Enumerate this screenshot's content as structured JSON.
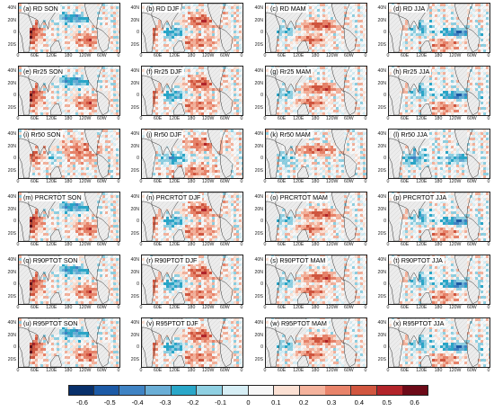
{
  "panels": [
    {
      "label": "(a) RD SON",
      "pattern": 0
    },
    {
      "label": "(b) RD DJF",
      "pattern": 1
    },
    {
      "label": "(c) RD MAM",
      "pattern": 2
    },
    {
      "label": "(d) RD JJA",
      "pattern": 3
    },
    {
      "label": "(e) Rr25 SON",
      "pattern": 0
    },
    {
      "label": "(f) Rr25 DJF",
      "pattern": 1
    },
    {
      "label": "(g) Rr25 MAM",
      "pattern": 2
    },
    {
      "label": "(h) Rr25 JJA",
      "pattern": 3
    },
    {
      "label": "(i) Rr50 SON",
      "pattern": 4
    },
    {
      "label": "(j) Rr50 DJF",
      "pattern": 5
    },
    {
      "label": "(k) Rr50 MAM",
      "pattern": 6
    },
    {
      "label": "(l) Rr50 JJA",
      "pattern": 7
    },
    {
      "label": "(m) PRCRTOT SON",
      "pattern": 0
    },
    {
      "label": "(n) PRCRTOT DJF",
      "pattern": 1
    },
    {
      "label": "(o) PRCRTOT MAM",
      "pattern": 2
    },
    {
      "label": "(p) PRCRTOT JJA",
      "pattern": 3
    },
    {
      "label": "(q) R90PTOT SON",
      "pattern": 0
    },
    {
      "label": "(r) R90PTOT DJF",
      "pattern": 1
    },
    {
      "label": "(s) R90PTOT MAM",
      "pattern": 2
    },
    {
      "label": "(t) R90PTOT JJA",
      "pattern": 3
    },
    {
      "label": "(u) R95PTOT SON",
      "pattern": 0
    },
    {
      "label": "(v) R95PTOT DJF",
      "pattern": 1
    },
    {
      "label": "(w) R95PTOT MAM",
      "pattern": 2
    },
    {
      "label": "(x) R95PTOT JJA",
      "pattern": 3
    }
  ],
  "map_axes": {
    "lat_labels": [
      "40N",
      "20N",
      "0",
      "20S"
    ],
    "lon_labels": [
      "0",
      "60E",
      "120E",
      "180",
      "120W",
      "60W",
      "0"
    ]
  },
  "colorbar": {
    "ticks": [
      "-0.6",
      "-0.5",
      "-0.4",
      "-0.3",
      "-0.2",
      "-0.1",
      "0",
      "0.1",
      "0.2",
      "0.3",
      "0.4",
      "0.5",
      "0.6"
    ],
    "colors": [
      "#08306b",
      "#1c5aa6",
      "#3f83c4",
      "#6aaed6",
      "#2aa7c9",
      "#8fd0e2",
      "#d6eef5",
      "#f7f7f7",
      "#fbe0d3",
      "#f4b29c",
      "#e8836a",
      "#d1563f",
      "#b2242a",
      "#6d0a18"
    ]
  }
}
